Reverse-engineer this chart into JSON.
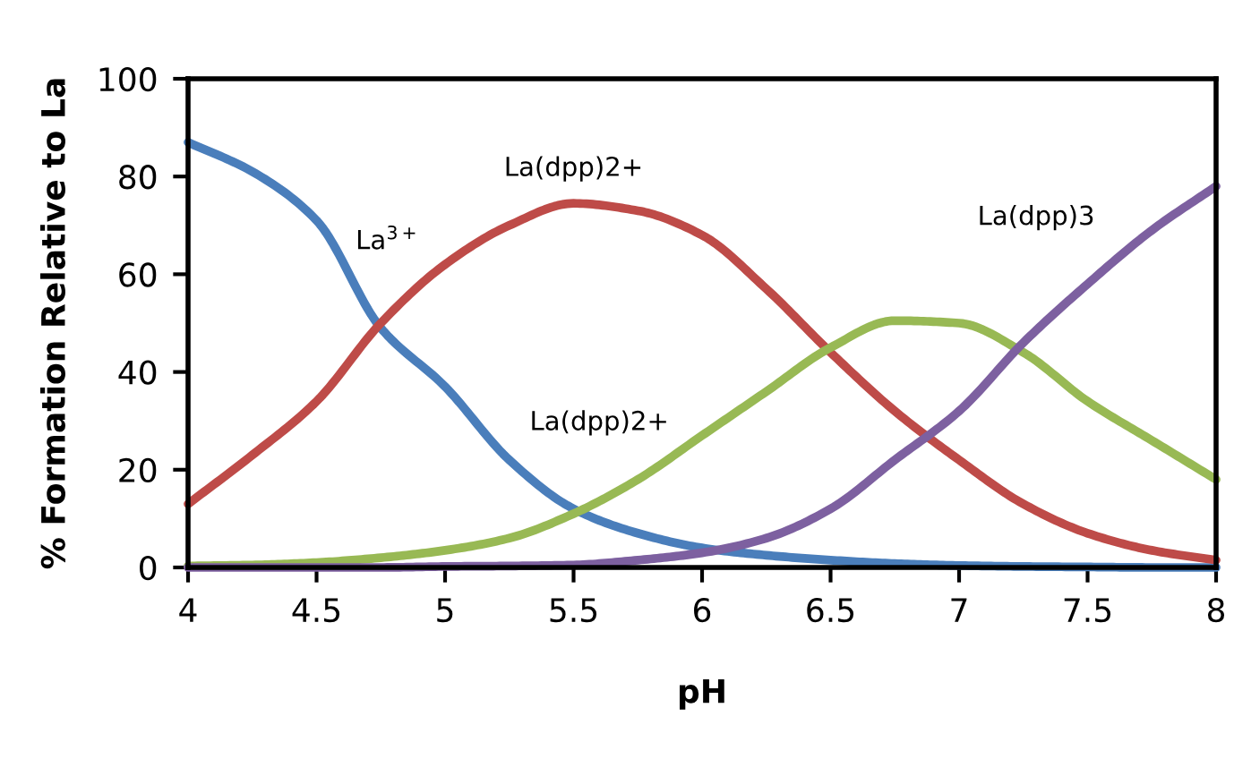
{
  "chart_data": {
    "type": "line",
    "xlabel": "pH",
    "ylabel": "% Formation Relative to La",
    "x": [
      4,
      4.25,
      4.5,
      4.75,
      5,
      5.25,
      5.5,
      5.75,
      6,
      6.25,
      6.5,
      6.75,
      7,
      7.25,
      7.5,
      7.75,
      8
    ],
    "series": [
      {
        "name": "La$^{3+}$",
        "color": "#4a7ebb",
        "values": [
          87,
          81,
          71,
          49,
          37,
          22,
          12,
          7,
          4,
          2.5,
          1.5,
          0.8,
          0.4,
          0.2,
          0.1,
          0,
          0
        ]
      },
      {
        "name": "La(dpp)2+",
        "color": "#be4b48",
        "values": [
          13,
          23,
          34,
          50,
          62,
          70,
          74.5,
          73,
          68,
          57,
          44,
          32,
          22,
          13,
          7,
          3.5,
          1.5
        ]
      },
      {
        "name": "La(dpp)2+",
        "color": "#98b954",
        "values": [
          0.3,
          0.5,
          1,
          2,
          3.5,
          6,
          11,
          18,
          27,
          36,
          45,
          50.5,
          50,
          44,
          34,
          26,
          18
        ]
      },
      {
        "name": "La(dpp)3",
        "color": "#7d60a0",
        "values": [
          0,
          0,
          0,
          0,
          0.2,
          0.3,
          0.5,
          1.5,
          3,
          6,
          12,
          22,
          32,
          46,
          58,
          69,
          78
        ]
      }
    ],
    "xlim": [
      4,
      8
    ],
    "xticks": [
      4,
      4.5,
      5,
      5.5,
      6,
      6.5,
      7,
      7.5,
      8
    ],
    "ylim": [
      0,
      100
    ],
    "yticks": [
      0,
      20,
      40,
      60,
      80,
      100
    ],
    "grid": false,
    "legend": false,
    "marker": "none",
    "line_style": "solid"
  }
}
